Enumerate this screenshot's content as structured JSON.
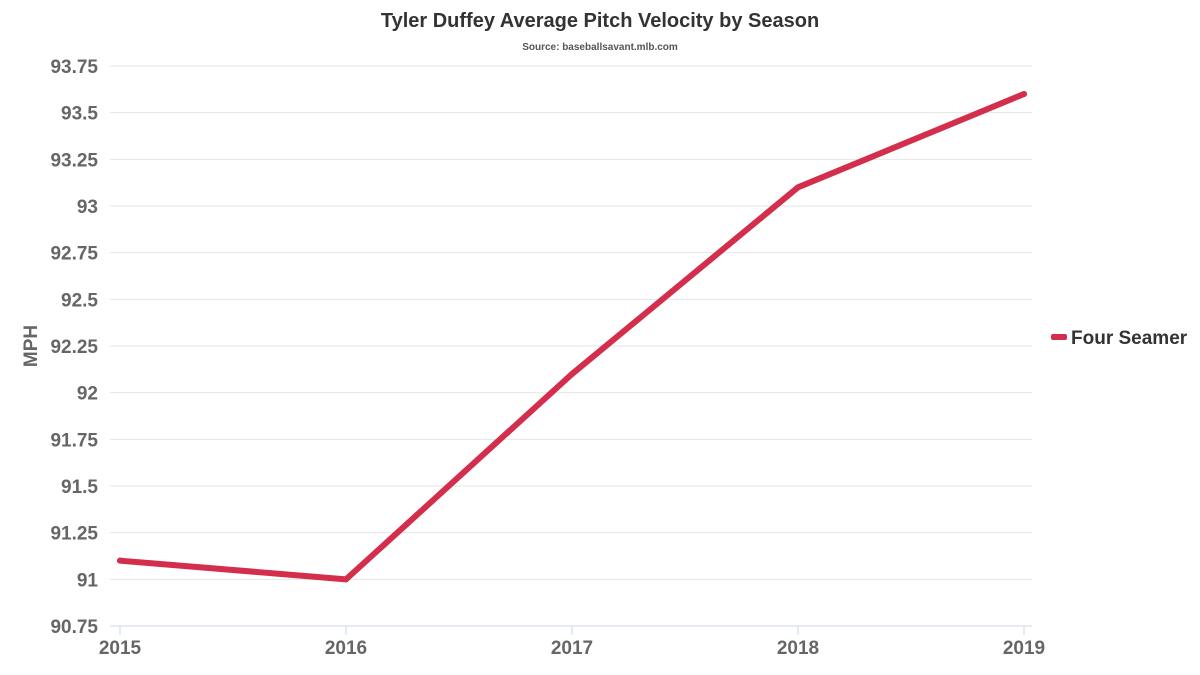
{
  "chart_data": {
    "type": "line",
    "title": "Tyler Duffey Average Pitch Velocity by Season",
    "subtitle": "Source: baseballsavant.mlb.com",
    "xlabel": "",
    "ylabel": "MPH",
    "categories": [
      "2015",
      "2016",
      "2017",
      "2018",
      "2019"
    ],
    "series": [
      {
        "name": "Four Seamer",
        "color": "#d32f4c",
        "values": [
          91.1,
          91.0,
          92.1,
          93.1,
          93.6
        ]
      }
    ],
    "ylim": [
      90.75,
      93.75
    ],
    "yticks": [
      90.75,
      91,
      91.25,
      91.5,
      91.75,
      92,
      92.25,
      92.5,
      92.75,
      93,
      93.25,
      93.5,
      93.75
    ],
    "ytick_labels": [
      "90.75",
      "91",
      "91.25",
      "91.5",
      "91.75",
      "92",
      "92.25",
      "92.5",
      "92.75",
      "93",
      "93.25",
      "93.5",
      "93.75"
    ],
    "grid": true,
    "legend_position": "right"
  }
}
